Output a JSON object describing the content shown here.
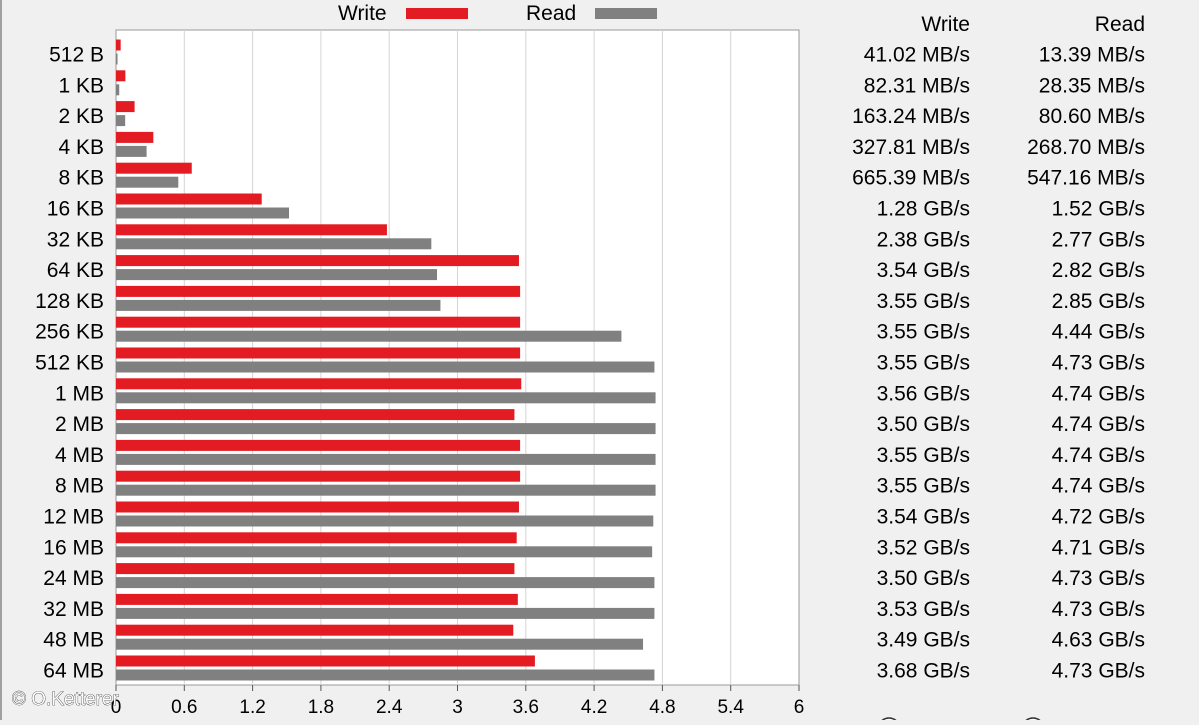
{
  "legend": {
    "write_label": "Write",
    "read_label": "Read",
    "write_color": "#e31b23",
    "read_color": "#808080"
  },
  "table_headers": {
    "write": "Write",
    "read": "Read"
  },
  "watermark": "© O.Ketterer",
  "chart_data": {
    "type": "bar",
    "orientation": "horizontal",
    "categories": [
      "512 B",
      "1 KB",
      "2 KB",
      "4 KB",
      "8 KB",
      "16 KB",
      "32 KB",
      "64 KB",
      "128 KB",
      "256 KB",
      "512 KB",
      "1 MB",
      "2 MB",
      "4 MB",
      "8 MB",
      "12 MB",
      "16 MB",
      "24 MB",
      "32 MB",
      "48 MB",
      "64 MB"
    ],
    "series": [
      {
        "name": "Write",
        "color": "#e31b23",
        "values": [
          0.04102,
          0.08231,
          0.16324,
          0.32781,
          0.66539,
          1.28,
          2.38,
          3.54,
          3.55,
          3.55,
          3.55,
          3.56,
          3.5,
          3.55,
          3.55,
          3.54,
          3.52,
          3.5,
          3.53,
          3.49,
          3.68
        ],
        "labels": [
          "41.02 MB/s",
          "82.31 MB/s",
          "163.24 MB/s",
          "327.81 MB/s",
          "665.39 MB/s",
          "1.28 GB/s",
          "2.38 GB/s",
          "3.54 GB/s",
          "3.55 GB/s",
          "3.55 GB/s",
          "3.55 GB/s",
          "3.56 GB/s",
          "3.50 GB/s",
          "3.55 GB/s",
          "3.55 GB/s",
          "3.54 GB/s",
          "3.52 GB/s",
          "3.50 GB/s",
          "3.53 GB/s",
          "3.49 GB/s",
          "3.68 GB/s"
        ]
      },
      {
        "name": "Read",
        "color": "#808080",
        "values": [
          0.01339,
          0.02835,
          0.0806,
          0.2687,
          0.54716,
          1.52,
          2.77,
          2.82,
          2.85,
          4.44,
          4.73,
          4.74,
          4.74,
          4.74,
          4.74,
          4.72,
          4.71,
          4.73,
          4.73,
          4.63,
          4.73
        ],
        "labels": [
          "13.39 MB/s",
          "28.35 MB/s",
          "80.60 MB/s",
          "268.70 MB/s",
          "547.16 MB/s",
          "1.52 GB/s",
          "2.77 GB/s",
          "2.82 GB/s",
          "2.85 GB/s",
          "4.44 GB/s",
          "4.73 GB/s",
          "4.74 GB/s",
          "4.74 GB/s",
          "4.74 GB/s",
          "4.74 GB/s",
          "4.72 GB/s",
          "4.71 GB/s",
          "4.73 GB/s",
          "4.73 GB/s",
          "4.63 GB/s",
          "4.73 GB/s"
        ]
      }
    ],
    "xticks": [
      "0",
      "0.6",
      "1.2",
      "1.8",
      "2.4",
      "3",
      "3.6",
      "4.2",
      "4.8",
      "5.4",
      "6"
    ],
    "xlim": [
      0,
      6
    ],
    "grid": true,
    "legend_position": "top"
  }
}
